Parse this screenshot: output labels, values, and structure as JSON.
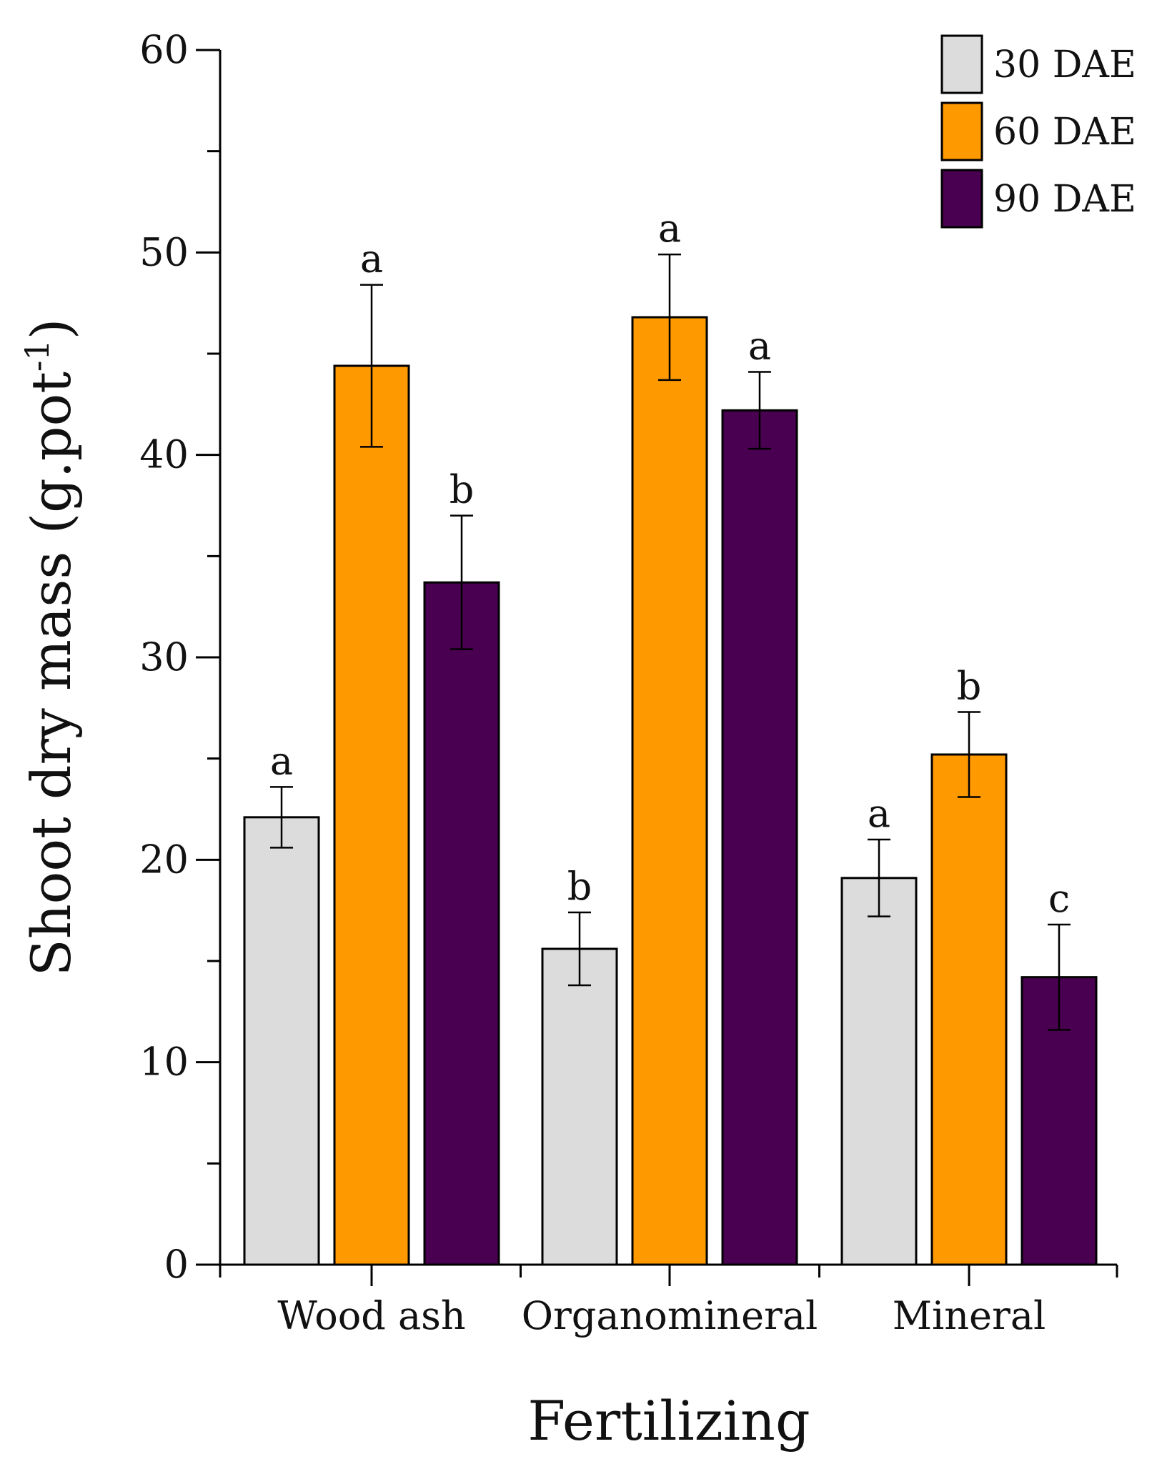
{
  "chart_data": {
    "type": "bar",
    "title": "",
    "xlabel": "Fertilizing",
    "ylabel_main": "Shoot dry mass (g.pot",
    "ylabel_sup": "-1",
    "ylabel_close": ")",
    "ylim": [
      0,
      60
    ],
    "yticks": [
      0,
      10,
      20,
      30,
      40,
      50,
      60
    ],
    "grid": false,
    "legend_position": "top-right",
    "categories": [
      "Wood ash",
      "Organomineral",
      "Mineral"
    ],
    "series": [
      {
        "name": "30 DAE",
        "color": "#dcdcdc",
        "values": [
          22.1,
          15.6,
          19.1
        ],
        "errors": [
          1.5,
          1.8,
          1.9
        ],
        "letters": [
          "a",
          "b",
          "a"
        ]
      },
      {
        "name": "60 DAE",
        "color": "#ff9900",
        "values": [
          44.4,
          46.8,
          25.2
        ],
        "errors": [
          4.0,
          3.1,
          2.1
        ],
        "letters": [
          "a",
          "a",
          "b"
        ]
      },
      {
        "name": "90 DAE",
        "color": "#4a0050",
        "values": [
          33.7,
          42.2,
          14.2
        ],
        "errors": [
          3.3,
          1.9,
          2.6
        ],
        "letters": [
          "b",
          "a",
          "c"
        ]
      }
    ]
  }
}
